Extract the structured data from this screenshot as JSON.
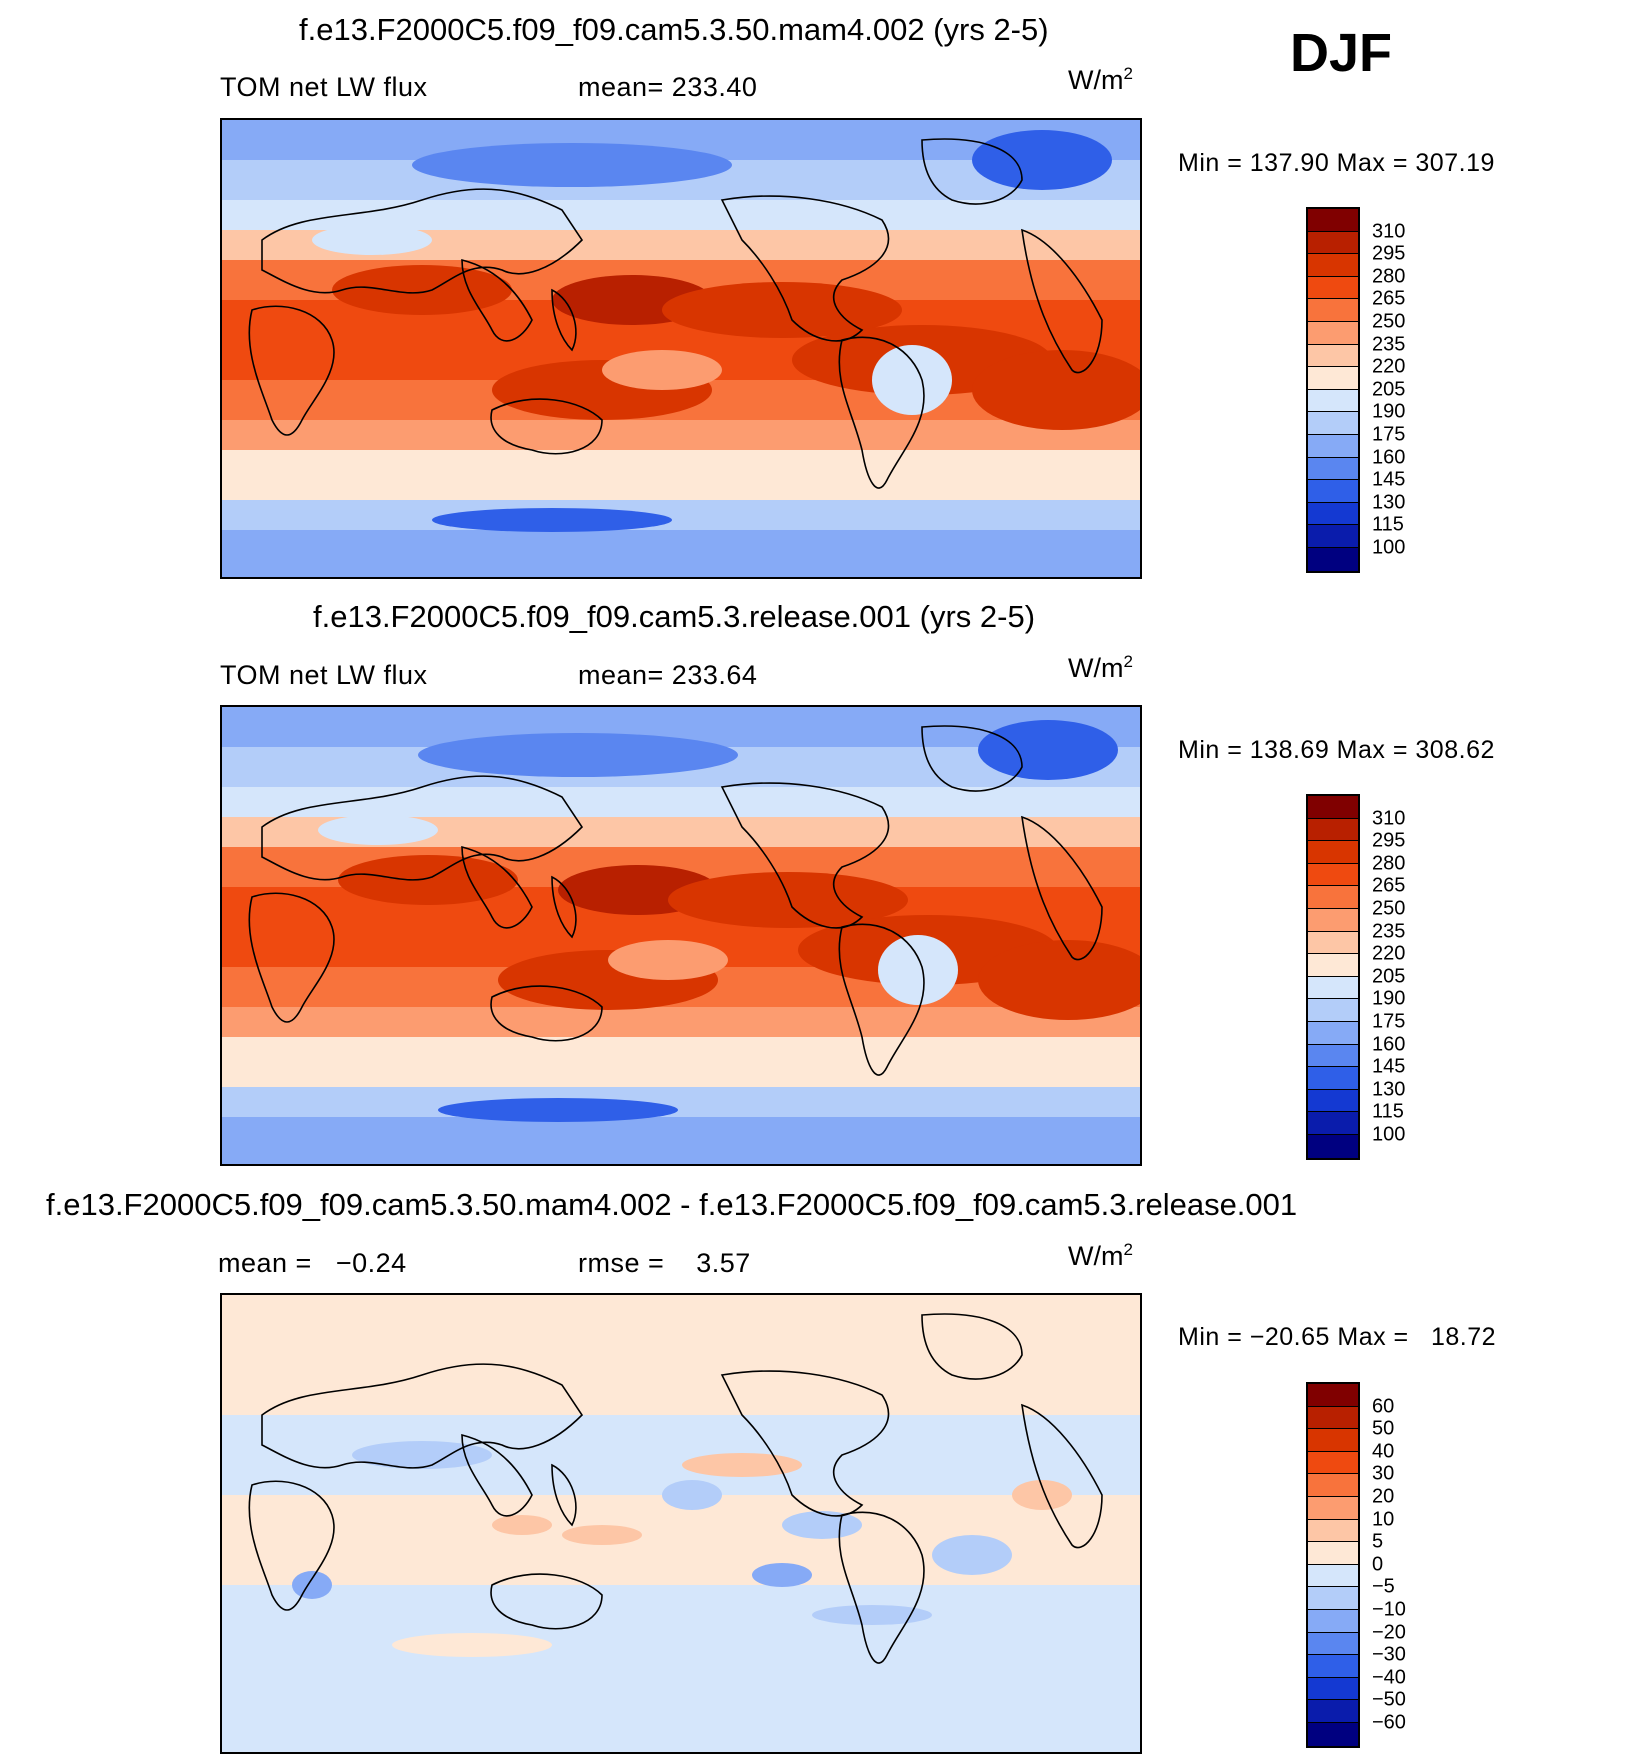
{
  "season": "DJF",
  "panels": [
    {
      "title": "f.e13.F2000C5.f09_f09.cam5.3.50.mam4.002 (yrs 2-5)",
      "left_label": "TOM net LW flux",
      "stat_label": "mean= 233.40",
      "units": "W/m",
      "units_sup": "2",
      "minmax": "Min = 137.90 Max = 307.19",
      "colorbar": {
        "levels": [
          "310",
          "295",
          "280",
          "265",
          "250",
          "235",
          "220",
          "205",
          "190",
          "175",
          "160",
          "145",
          "130",
          "115",
          "100"
        ],
        "colors": [
          "#800000",
          "#b82000",
          "#d83500",
          "#ef4a10",
          "#f8733c",
          "#fc9c70",
          "#fdc6a6",
          "#fee8d6",
          "#d5e6fb",
          "#b3cdf9",
          "#86aaf6",
          "#5a86f0",
          "#2f5fe8",
          "#1439d2",
          "#0a1cac",
          "#000080"
        ]
      }
    },
    {
      "title": "f.e13.F2000C5.f09_f09.cam5.3.release.001 (yrs 2-5)",
      "left_label": "TOM net LW flux",
      "stat_label": "mean= 233.64",
      "units": "W/m",
      "units_sup": "2",
      "minmax": "Min = 138.69 Max = 308.62",
      "colorbar": {
        "levels": [
          "310",
          "295",
          "280",
          "265",
          "250",
          "235",
          "220",
          "205",
          "190",
          "175",
          "160",
          "145",
          "130",
          "115",
          "100"
        ],
        "colors": [
          "#800000",
          "#b82000",
          "#d83500",
          "#ef4a10",
          "#f8733c",
          "#fc9c70",
          "#fdc6a6",
          "#fee8d6",
          "#d5e6fb",
          "#b3cdf9",
          "#86aaf6",
          "#5a86f0",
          "#2f5fe8",
          "#1439d2",
          "#0a1cac",
          "#000080"
        ]
      }
    },
    {
      "title": "f.e13.F2000C5.f09_f09.cam5.3.50.mam4.002 - f.e13.F2000C5.f09_f09.cam5.3.release.001",
      "left_label": "mean =   −0.24",
      "stat_label": "rmse =    3.57",
      "units": "W/m",
      "units_sup": "2",
      "minmax": "Min = −20.65 Max =   18.72",
      "colorbar": {
        "levels": [
          "60",
          "50",
          "40",
          "30",
          "20",
          "10",
          "5",
          "0",
          "−5",
          "−10",
          "−20",
          "−30",
          "−40",
          "−50",
          "−60"
        ],
        "colors": [
          "#800000",
          "#b82000",
          "#d83500",
          "#ef4a10",
          "#f8733c",
          "#fc9c70",
          "#fdc6a6",
          "#fee8d6",
          "#d5e6fb",
          "#b3cdf9",
          "#86aaf6",
          "#5a86f0",
          "#2f5fe8",
          "#1439d2",
          "#0a1cac",
          "#000080"
        ]
      }
    }
  ]
}
